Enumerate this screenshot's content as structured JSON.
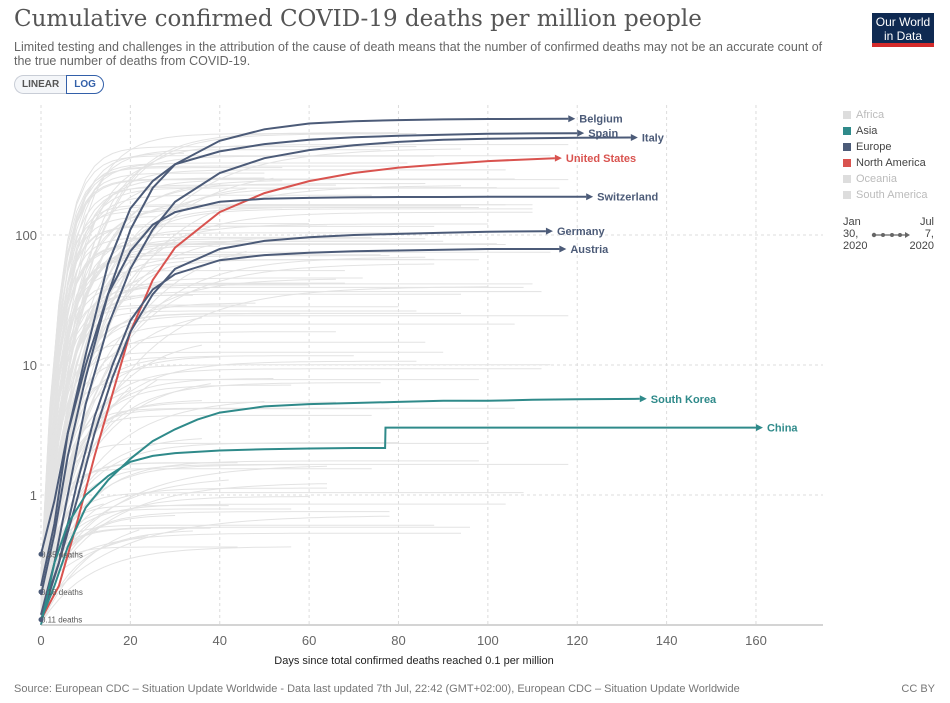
{
  "header": {
    "title": "Cumulative confirmed COVID-19 deaths per million people",
    "subtitle": "Limited testing and challenges in the attribution of the cause of death means that the number of confirmed deaths may not be an accurate count of the true number of deaths from COVID-19.",
    "logo_line1": "Our World",
    "logo_line2": "in Data",
    "scale_linear": "LINEAR",
    "scale_log": "LOG"
  },
  "legend": {
    "items": [
      {
        "label": "Africa",
        "color": "#dddddd",
        "active": false
      },
      {
        "label": "Asia",
        "color": "#2f8a8a",
        "active": true
      },
      {
        "label": "Europe",
        "color": "#4c5b78",
        "active": true
      },
      {
        "label": "North America",
        "color": "#d9534f",
        "active": true
      },
      {
        "label": "Oceania",
        "color": "#dddddd",
        "active": false
      },
      {
        "label": "South America",
        "color": "#dddddd",
        "active": false
      }
    ]
  },
  "timeline": {
    "start_line1": "Jan",
    "start_line2": "30,",
    "start_line3": "2020",
    "end_line1": "Jul",
    "end_line2": "7,",
    "end_line3": "2020"
  },
  "chart_data": {
    "type": "line",
    "x_scale": "linear",
    "y_scale": "log",
    "xlim": [
      0,
      175
    ],
    "ylim": [
      0.1,
      1000
    ],
    "xticks": [
      0,
      20,
      40,
      60,
      80,
      100,
      120,
      140,
      160
    ],
    "yticks": [
      1,
      10,
      100
    ],
    "xlabel": "Days since total confirmed deaths reached 0.1 per million",
    "ylabel": "",
    "grid": true,
    "reference_labels": [
      "0.35 deaths",
      "0.18 deaths",
      "0.11 deaths"
    ],
    "reference_values": [
      0.35,
      0.18,
      0.11
    ],
    "series": [
      {
        "name": "Belgium",
        "region": "Europe",
        "color": "#4c5b78",
        "x": [
          0,
          3,
          6,
          10,
          15,
          20,
          25,
          30,
          40,
          50,
          60,
          70,
          80,
          90,
          100,
          110,
          118
        ],
        "y": [
          0.17,
          0.5,
          2,
          8,
          35,
          110,
          230,
          350,
          530,
          650,
          720,
          750,
          765,
          775,
          780,
          782,
          784
        ]
      },
      {
        "name": "Spain",
        "region": "Europe",
        "color": "#4c5b78",
        "x": [
          0,
          3,
          6,
          10,
          15,
          20,
          25,
          30,
          40,
          50,
          60,
          70,
          80,
          90,
          100,
          110,
          120
        ],
        "y": [
          0.2,
          0.6,
          3,
          12,
          60,
          160,
          260,
          350,
          440,
          500,
          540,
          565,
          580,
          590,
          600,
          605,
          607
        ]
      },
      {
        "name": "Italy",
        "region": "Europe",
        "color": "#4c5b78",
        "x": [
          0,
          3,
          6,
          10,
          15,
          20,
          25,
          30,
          40,
          50,
          60,
          70,
          80,
          90,
          100,
          110,
          120,
          132
        ],
        "y": [
          0.12,
          0.3,
          1,
          5,
          20,
          55,
          110,
          180,
          300,
          390,
          450,
          490,
          520,
          540,
          550,
          555,
          560,
          562
        ]
      },
      {
        "name": "United States",
        "region": "North America",
        "color": "#d9534f",
        "x": [
          0,
          4,
          8,
          12,
          16,
          20,
          25,
          30,
          40,
          50,
          60,
          70,
          80,
          90,
          100,
          115
        ],
        "y": [
          0.11,
          0.2,
          0.6,
          2,
          6,
          18,
          45,
          80,
          150,
          210,
          260,
          300,
          330,
          350,
          370,
          390
        ]
      },
      {
        "name": "Switzerland",
        "region": "Europe",
        "color": "#4c5b78",
        "x": [
          0,
          3,
          6,
          10,
          15,
          20,
          25,
          30,
          40,
          50,
          60,
          70,
          80,
          90,
          100,
          110,
          122
        ],
        "y": [
          0.35,
          0.9,
          3,
          10,
          35,
          75,
          120,
          150,
          180,
          190,
          193,
          195,
          196,
          196,
          197,
          197,
          197
        ]
      },
      {
        "name": "Germany",
        "region": "Europe",
        "color": "#4c5b78",
        "x": [
          0,
          4,
          8,
          12,
          16,
          20,
          25,
          30,
          40,
          50,
          60,
          70,
          80,
          90,
          100,
          113
        ],
        "y": [
          0.12,
          0.3,
          0.9,
          3,
          8,
          18,
          35,
          55,
          78,
          90,
          96,
          100,
          102,
          104,
          106,
          107
        ]
      },
      {
        "name": "Austria",
        "region": "Europe",
        "color": "#4c5b78",
        "x": [
          0,
          4,
          8,
          12,
          16,
          20,
          25,
          30,
          40,
          50,
          60,
          70,
          80,
          90,
          100,
          116
        ],
        "y": [
          0.11,
          0.3,
          1.2,
          4,
          10,
          22,
          38,
          50,
          64,
          70,
          73,
          75,
          76,
          77,
          78,
          78
        ]
      },
      {
        "name": "South Korea",
        "region": "Asia",
        "color": "#2f8a8a",
        "x": [
          0,
          3,
          6,
          10,
          15,
          20,
          25,
          30,
          35,
          40,
          50,
          60,
          70,
          80,
          90,
          100,
          110,
          120,
          134
        ],
        "y": [
          0.11,
          0.2,
          0.4,
          0.8,
          1.3,
          1.9,
          2.6,
          3.2,
          3.8,
          4.3,
          4.8,
          5,
          5.1,
          5.2,
          5.3,
          5.3,
          5.4,
          5.45,
          5.5
        ]
      },
      {
        "name": "China",
        "region": "Asia",
        "color": "#2f8a8a",
        "x": [
          0,
          3,
          6,
          10,
          15,
          20,
          25,
          30,
          40,
          50,
          60,
          70,
          77,
          77.1,
          100,
          130,
          160
        ],
        "y": [
          0.1,
          0.3,
          0.6,
          1,
          1.4,
          1.8,
          2,
          2.1,
          2.2,
          2.25,
          2.28,
          2.3,
          2.3,
          3.3,
          3.3,
          3.3,
          3.3
        ]
      }
    ]
  },
  "footer": {
    "source": "Source: European CDC – Situation Update Worldwide - Data last updated 7th Jul, 22:42 (GMT+02:00), European CDC – Situation Update Worldwide",
    "license": "CC BY"
  }
}
